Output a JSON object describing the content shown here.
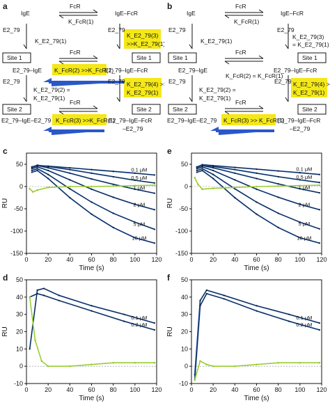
{
  "panel_labels": {
    "a": "a",
    "b": "b",
    "c": "c",
    "d": "d",
    "e": "e",
    "f": "f"
  },
  "scheme_a": {
    "fcr": "FcR",
    "ige": "IgE",
    "ige_fcr": "IgE–FcR",
    "k_fcr1": "K_FcR(1)",
    "e2_79_l": "E2_79",
    "e2_79_r": "E2_79",
    "k_e279_1": "K_E2_79(1)",
    "k_e279_3_line1": "K_E2_79(3)",
    "k_e279_3_line2": ">>K_E2_79(1)",
    "site1_l": "Site 1",
    "site1_r": "Site 1",
    "fcr_mid": "FcR",
    "complex_l": "E2_79–IgE",
    "complex_r": "E2_79–IgE–FcR",
    "k_fcr2": "K_FcR(2) >>K_FcR(1)",
    "e2_79_l2": "E2_79",
    "e2_79_r2": "E2_79",
    "k_e279_2_line1": "K_E2_79(2) =",
    "k_e279_2_line2": "K_E2_79(1)",
    "k_e279_4_line1": "K_E2_79(4) >>",
    "k_e279_4_line2": "K_E2_79(1)",
    "site2_l": "Site 2",
    "site2_r": "Site 2",
    "fcr_bot": "FcR",
    "complex_bl": "E2_79–IgE–E2_79",
    "k_fcr3": "K_FcR(3) >>K_FcR(1)",
    "complex_br_line1": "E2_79–IgE–FcR",
    "complex_br_line2": "–E2_79"
  },
  "scheme_b": {
    "fcr": "FcR",
    "ige": "IgE",
    "ige_fcr": "IgE–FcR",
    "k_fcr1": "K_FcR(1)",
    "e2_79_l": "E2_79",
    "e2_79_r": "E2_79",
    "k_e279_1": "K_E2_79(1)",
    "k_e279_3_line1": "K_E2_79(3)",
    "k_e279_3_line2": "= K_E2_79(1)",
    "site1_l": "Site 1",
    "site1_r": "Site 1",
    "fcr_mid": "FcR",
    "complex_l": "E2_79–IgE",
    "complex_r": "E2_79–IgE–FcR",
    "k_fcr2": "K_FcR(2) = K_FcR(1)",
    "e2_79_l2": "E2_79",
    "e2_79_r2": "E2_79",
    "k_e279_2_line1": "K_E2_79(2) =",
    "k_e279_2_line2": "K_E2_79(1)",
    "k_e279_4_line1": "K_E2_79(4) >>",
    "k_e279_4_line2": "K_E2_79(1)",
    "site2_l": "Site 2",
    "site2_r": "Site 2",
    "fcr_bot": "FcR",
    "complex_bl": "E2_79–IgE–E2_79",
    "k_fcr3": "K_FcR(3) >> K_FcR(1)",
    "complex_br_line1": "E2_79–IgE–FcR",
    "complex_br_line2": "–E2_79"
  },
  "colors": {
    "fit_dark": "#0d1a33",
    "fit_blue": "#2f6fc4",
    "green": "#9acd32",
    "highlight": "#f4e818",
    "arrow_blue": "#2a57c9"
  },
  "chart_data": [
    {
      "panel": "c",
      "type": "line",
      "xlabel": "Time (s)",
      "ylabel": "RU",
      "xlim": [
        0,
        120
      ],
      "ylim": [
        -150,
        75
      ],
      "xticks": [
        0,
        20,
        40,
        60,
        80,
        100,
        120
      ],
      "yticks": [
        -150,
        -100,
        -50,
        0,
        50
      ],
      "series": [
        {
          "name": "0.1 μM",
          "x": [
            5,
            10,
            20,
            40,
            60,
            80,
            100,
            118
          ],
          "y": [
            44,
            47,
            46,
            42,
            38,
            34,
            30,
            26
          ]
        },
        {
          "name": "0.5 μM",
          "x": [
            5,
            10,
            20,
            40,
            60,
            80,
            100,
            118
          ],
          "y": [
            44,
            48,
            45,
            38,
            30,
            22,
            14,
            8
          ]
        },
        {
          "name": "1 μM",
          "x": [
            5,
            10,
            20,
            40,
            60,
            80,
            100,
            118
          ],
          "y": [
            43,
            47,
            42,
            30,
            17,
            5,
            -6,
            -15
          ]
        },
        {
          "name": "2 μM",
          "x": [
            5,
            10,
            20,
            40,
            60,
            80,
            100,
            118
          ],
          "y": [
            40,
            44,
            36,
            15,
            -6,
            -24,
            -40,
            -52
          ]
        },
        {
          "name": "5 μM",
          "x": [
            5,
            10,
            20,
            40,
            60,
            80,
            100,
            118
          ],
          "y": [
            36,
            40,
            27,
            -5,
            -35,
            -60,
            -80,
            -96
          ]
        },
        {
          "name": "10 μM",
          "x": [
            5,
            10,
            20,
            40,
            60,
            80,
            100,
            118
          ],
          "y": [
            32,
            36,
            18,
            -25,
            -62,
            -92,
            -115,
            -127
          ]
        },
        {
          "name": "",
          "x": [
            3,
            6,
            10,
            20,
            40,
            60,
            80,
            100,
            118
          ],
          "y": [
            -5,
            -12,
            -8,
            -2,
            0,
            0,
            1,
            2,
            3
          ]
        }
      ]
    },
    {
      "panel": "e",
      "type": "line",
      "xlabel": "Time (s)",
      "ylabel": "RU",
      "xlim": [
        0,
        120
      ],
      "ylim": [
        -150,
        75
      ],
      "xticks": [
        0,
        20,
        40,
        60,
        80,
        100,
        120
      ],
      "yticks": [
        -150,
        -100,
        -50,
        0,
        50
      ],
      "series": [
        {
          "name": "0.1 μM",
          "x": [
            5,
            10,
            20,
            40,
            60,
            80,
            100,
            118
          ],
          "y": [
            44,
            49,
            47,
            43,
            39,
            35,
            31,
            27
          ]
        },
        {
          "name": "0.5 μM",
          "x": [
            5,
            10,
            20,
            40,
            60,
            80,
            100,
            118
          ],
          "y": [
            44,
            48,
            45,
            38,
            30,
            22,
            15,
            9
          ]
        },
        {
          "name": "1 μM",
          "x": [
            5,
            10,
            20,
            40,
            60,
            80,
            100,
            118
          ],
          "y": [
            43,
            47,
            42,
            30,
            18,
            6,
            -5,
            -14
          ]
        },
        {
          "name": "2 μM",
          "x": [
            5,
            10,
            20,
            40,
            60,
            80,
            100,
            118
          ],
          "y": [
            40,
            44,
            36,
            15,
            -6,
            -24,
            -40,
            -52
          ]
        },
        {
          "name": "5 μM",
          "x": [
            5,
            10,
            20,
            40,
            60,
            80,
            100,
            118
          ],
          "y": [
            36,
            40,
            27,
            -5,
            -35,
            -60,
            -80,
            -95
          ]
        },
        {
          "name": "10 μM",
          "x": [
            5,
            10,
            20,
            40,
            60,
            80,
            100,
            118
          ],
          "y": [
            32,
            36,
            18,
            -25,
            -62,
            -92,
            -115,
            -127
          ]
        },
        {
          "name": "",
          "x": [
            3,
            6,
            10,
            20,
            40,
            60,
            80,
            100,
            118
          ],
          "y": [
            20,
            5,
            -6,
            -4,
            -2,
            0,
            1,
            2,
            3
          ]
        }
      ]
    },
    {
      "panel": "d",
      "type": "line",
      "xlabel": "Time (s)",
      "ylabel": "RU",
      "xlim": [
        0,
        120
      ],
      "ylim": [
        -10,
        50
      ],
      "xticks": [
        0,
        20,
        40,
        60,
        80,
        100,
        120
      ],
      "yticks": [
        -10,
        0,
        10,
        20,
        30,
        40,
        50
      ],
      "series": [
        {
          "name": "0.1 μM",
          "x": [
            3,
            10,
            16,
            30,
            60,
            90,
            118
          ],
          "y": [
            10,
            44,
            45,
            41,
            35,
            30,
            25
          ]
        },
        {
          "name": "0.2 μM",
          "x": [
            3,
            10,
            16,
            30,
            60,
            90,
            118
          ],
          "y": [
            40,
            42,
            41,
            38,
            32,
            26,
            21
          ]
        },
        {
          "name": "",
          "x": [
            3,
            8,
            14,
            20,
            40,
            60,
            80,
            100,
            118
          ],
          "y": [
            40,
            15,
            3,
            0,
            0,
            1,
            2,
            2,
            2
          ]
        }
      ]
    },
    {
      "panel": "f",
      "type": "line",
      "xlabel": "Time (s)",
      "ylabel": "RU",
      "xlim": [
        0,
        120
      ],
      "ylim": [
        -10,
        50
      ],
      "xticks": [
        0,
        20,
        40,
        60,
        80,
        100,
        120
      ],
      "yticks": [
        -10,
        0,
        10,
        20,
        30,
        40,
        50
      ],
      "series": [
        {
          "name": "0.1 μM",
          "x": [
            3,
            8,
            14,
            30,
            60,
            90,
            118
          ],
          "y": [
            -5,
            38,
            44,
            41,
            35,
            30,
            25
          ]
        },
        {
          "name": "0.2 μM",
          "x": [
            3,
            8,
            14,
            30,
            60,
            90,
            118
          ],
          "y": [
            -8,
            35,
            42,
            39,
            32,
            26,
            21
          ]
        },
        {
          "name": "",
          "x": [
            3,
            8,
            14,
            20,
            40,
            60,
            80,
            100,
            118
          ],
          "y": [
            -8,
            3,
            1,
            0,
            0,
            1,
            2,
            2,
            2
          ]
        }
      ]
    }
  ]
}
